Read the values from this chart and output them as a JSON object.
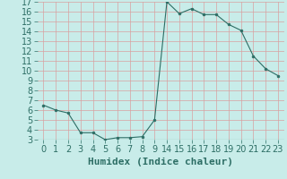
{
  "hours": [
    0,
    1,
    2,
    3,
    4,
    5,
    6,
    7,
    8,
    9,
    14,
    15,
    16,
    17,
    18,
    19,
    20,
    21,
    22,
    23
  ],
  "y": [
    6.5,
    6.0,
    5.7,
    3.7,
    3.7,
    3.0,
    3.2,
    3.2,
    3.3,
    5.0,
    17.0,
    15.8,
    16.3,
    15.7,
    15.7,
    14.7,
    14.1,
    11.5,
    10.2,
    9.5
  ],
  "xlabel": "Humidex (Indice chaleur)",
  "ylim": [
    3,
    17
  ],
  "yticks": [
    3,
    4,
    5,
    6,
    7,
    8,
    9,
    10,
    11,
    12,
    13,
    14,
    15,
    16,
    17
  ],
  "xtick_labels": [
    "0",
    "1",
    "2",
    "3",
    "4",
    "5",
    "6",
    "7",
    "8",
    "9",
    "14",
    "15",
    "16",
    "17",
    "18",
    "19",
    "20",
    "21",
    "22",
    "23"
  ],
  "bg_color": "#c8ece9",
  "grid_color_v": "#d9a0a0",
  "grid_color_h": "#d9a0a0",
  "line_color": "#2d6e65",
  "marker_color": "#2d6e65",
  "xlabel_color": "#2d6e65",
  "tick_color": "#2d6e65",
  "font_size": 7,
  "xlabel_fontsize": 8
}
